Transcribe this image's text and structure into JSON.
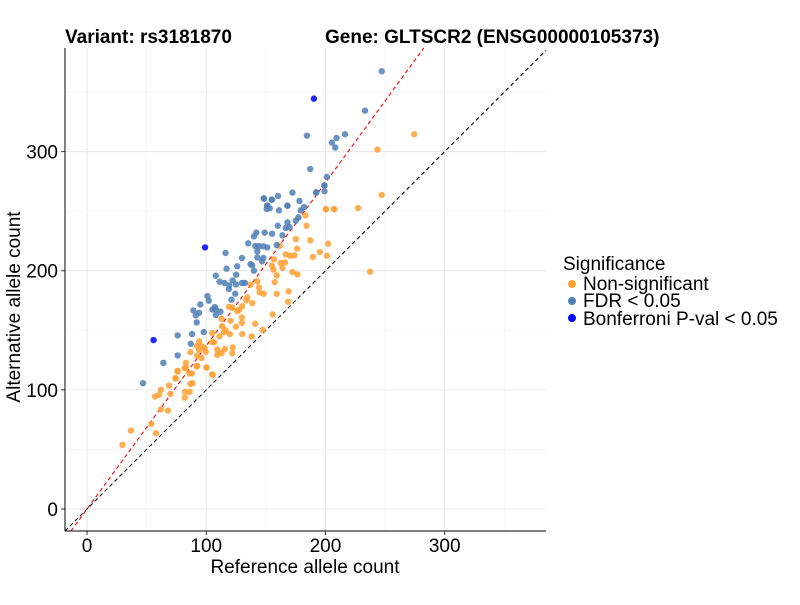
{
  "chart_data": {
    "type": "scatter",
    "title_variant": "Variant: rs3181870",
    "title_gene": "Gene: GLTSCR2 (ENSG00000105373)",
    "xlabel": "Reference allele count",
    "ylabel": "Alternative allele count",
    "xlim": [
      -18.5,
      385
    ],
    "ylim": [
      -18.5,
      387
    ],
    "xticks": [
      0,
      100,
      200,
      300
    ],
    "yticks": [
      0,
      100,
      200,
      300
    ],
    "grid": true,
    "legend": {
      "title": "Significance",
      "placement": "right",
      "entries": [
        {
          "label": "Non-significant",
          "color": "#FFA033"
        },
        {
          "label": "FDR < 0.05",
          "color": "#4F7FB5"
        },
        {
          "label": "Bonferroni P-val < 0.05",
          "color": "#0000FF"
        }
      ]
    },
    "reference_lines": [
      {
        "name": "identity",
        "slope": 1,
        "intercept": 0,
        "color": "#000000"
      },
      {
        "name": "fit",
        "slope": 1.37,
        "intercept": 0,
        "color": "#FF0000"
      }
    ],
    "series": [
      {
        "name": "Non-significant",
        "color": "#FFA033",
        "points": [
          [
            183.2,
            246.5
          ],
          [
            184.1,
            237.8
          ],
          [
            200.3,
            251.6
          ],
          [
            207.4,
            251.6
          ],
          [
            175.1,
            226.6
          ],
          [
            187.2,
            225.5
          ],
          [
            202.3,
            222.7
          ],
          [
            161.6,
            221
          ],
          [
            166.7,
            213.8
          ],
          [
            170.3,
            212.6
          ],
          [
            174,
            212.9
          ],
          [
            176.2,
            218.5
          ],
          [
            156.8,
            209.6
          ],
          [
            189.4,
            211.5
          ],
          [
            195.3,
            215.7
          ],
          [
            201.2,
            212.6
          ],
          [
            162.5,
            206.5
          ],
          [
            163.9,
            202.3
          ],
          [
            166.1,
            207
          ],
          [
            155.2,
            204.2
          ],
          [
            156.3,
            200.9
          ],
          [
            159.1,
            196.1
          ],
          [
            172.3,
            198.9
          ],
          [
            176.5,
            196.9
          ],
          [
            157.4,
            190.5
          ],
          [
            142.8,
            191.1
          ],
          [
            144.2,
            186
          ],
          [
            144.8,
            181.8
          ],
          [
            148.2,
            180.7
          ],
          [
            137.2,
            188.3
          ],
          [
            134.4,
            177.6
          ],
          [
            133.6,
            175.1
          ],
          [
            138.6,
            172.9
          ],
          [
            159.1,
            180.7
          ],
          [
            169.1,
            182.7
          ],
          [
            168.6,
            174
          ],
          [
            119,
            169.8
          ],
          [
            121.8,
            169
          ],
          [
            127.4,
            167
          ],
          [
            130.2,
            170.1
          ],
          [
            126,
            166.1
          ],
          [
            112.8,
            159.7
          ],
          [
            113.4,
            153.3
          ],
          [
            120.4,
            158
          ],
          [
            124.9,
            153
          ],
          [
            129.9,
            160.8
          ],
          [
            129.9,
            156.3
          ],
          [
            141.1,
            155.5
          ],
          [
            155.7,
            163.3
          ],
          [
            147.3,
            150.5
          ],
          [
            116.2,
            149.9
          ],
          [
            115,
            148.5
          ],
          [
            119.8,
            146.8
          ],
          [
            130.2,
            146.8
          ],
          [
            138.1,
            144.9
          ],
          [
            105,
            147.7
          ],
          [
            105,
            140.1
          ],
          [
            106.6,
            140.1
          ],
          [
            111.1,
            144.9
          ],
          [
            94,
            140.6
          ],
          [
            92.3,
            137
          ],
          [
            96.5,
            136.4
          ],
          [
            94,
            133.6
          ],
          [
            99.6,
            131.9
          ],
          [
            98.5,
            135
          ],
          [
            109.2,
            133.9
          ],
          [
            112.8,
            130.8
          ],
          [
            115.6,
            134.2
          ],
          [
            122.3,
            135.6
          ],
          [
            121.8,
            130.8
          ],
          [
            109.2,
            129.4
          ],
          [
            92.3,
            128.6
          ],
          [
            96,
            126.6
          ],
          [
            86.7,
            131.7
          ],
          [
            83,
            122.7
          ],
          [
            92.3,
            120.2
          ],
          [
            100.2,
            118.8
          ],
          [
            76,
            116
          ],
          [
            81.9,
            118.3
          ],
          [
            85.9,
            113.8
          ],
          [
            88.1,
            113.8
          ],
          [
            105,
            112.9
          ],
          [
            74.1,
            109.8
          ],
          [
            274.4,
            314.6
          ],
          [
            243.6,
            301.7
          ],
          [
            247.2,
            263.6
          ],
          [
            227.3,
            252.7
          ],
          [
            207.1,
            251.8
          ],
          [
            200.4,
            251.8
          ],
          [
            237.4,
            199.2
          ],
          [
            29.7,
            53.8
          ],
          [
            36.8,
            65.8
          ],
          [
            57.8,
            63.6
          ],
          [
            53.9,
            71.4
          ],
          [
            67.9,
            82.6
          ],
          [
            62,
            83.7
          ],
          [
            57,
            94.4
          ],
          [
            60.3,
            95.8
          ],
          [
            69.9,
            96.6
          ],
          [
            62,
            100
          ],
          [
            68.7,
            103.6
          ],
          [
            74.4,
            109.5
          ],
          [
            82,
            93.5
          ],
          [
            82.2,
            98.3
          ],
          [
            86.1,
            98.3
          ],
          [
            82.8,
            118.5
          ],
          [
            88.4,
            105.6
          ],
          [
            86.7,
            105
          ],
          [
            105.5,
            112.6
          ],
          [
            100.2,
            118.7
          ],
          [
            92,
            119.6
          ],
          [
            76,
            115.4
          ]
        ]
      },
      {
        "name": "FDR < 0.05",
        "color": "#4F7FB5",
        "points": [
          [
            148.4,
            260.5
          ],
          [
            155.2,
            259.7
          ],
          [
            160.2,
            262.8
          ],
          [
            172.3,
            265.6
          ],
          [
            178.2,
            258.6
          ],
          [
            151.2,
            254.7
          ],
          [
            153.2,
            252.4
          ],
          [
            150.7,
            251.9
          ],
          [
            161,
            250.7
          ],
          [
            168.1,
            254.7
          ],
          [
            182.1,
            253.5
          ],
          [
            179.3,
            250.7
          ],
          [
            192.2,
            265.9
          ],
          [
            199.2,
            271.7
          ],
          [
            199.2,
            266.7
          ],
          [
            177.3,
            244.8
          ],
          [
            168.1,
            240.6
          ],
          [
            175.1,
            242
          ],
          [
            160,
            237.8
          ],
          [
            169.8,
            236.7
          ],
          [
            166.7,
            235.9
          ],
          [
            142,
            232
          ],
          [
            149,
            232
          ],
          [
            155.2,
            231.1
          ],
          [
            163.9,
            229.7
          ],
          [
            140,
            228.9
          ],
          [
            135.2,
            223
          ],
          [
            141.1,
            220.8
          ],
          [
            144.2,
            220.8
          ],
          [
            147.9,
            220.5
          ],
          [
            151.2,
            219.6
          ],
          [
            159.1,
            221.6
          ],
          [
            116.2,
            214.9
          ],
          [
            142.8,
            216.3
          ],
          [
            142.8,
            211.2
          ],
          [
            147.9,
            210.7
          ],
          [
            129.9,
            210.7
          ],
          [
            137.2,
            205.6
          ],
          [
            138.6,
            204.5
          ],
          [
            146.8,
            207.9
          ],
          [
            126,
            203.7
          ],
          [
            117,
            201.7
          ],
          [
            140,
            200
          ],
          [
            125.1,
            196.7
          ],
          [
            108,
            195.8
          ],
          [
            111.1,
            190.8
          ],
          [
            115.3,
            189.7
          ],
          [
            122.1,
            191.9
          ],
          [
            124.9,
            188.5
          ],
          [
            119.3,
            187.7
          ],
          [
            119,
            184.6
          ],
          [
            129.9,
            189.7
          ],
          [
            132.4,
            189.7
          ],
          [
            124.3,
            180.7
          ],
          [
            121.2,
            175.7
          ],
          [
            101,
            178.7
          ],
          [
            102.1,
            174.8
          ],
          [
            95.1,
            171.7
          ],
          [
            89.2,
            166.7
          ],
          [
            94,
            164.7
          ],
          [
            91.2,
            162.5
          ],
          [
            107.2,
            169.5
          ],
          [
            105.2,
            167.5
          ],
          [
            108,
            167.5
          ],
          [
            111.9,
            165.6
          ],
          [
            108,
            162.8
          ],
          [
            92,
            156.6
          ],
          [
            97.9,
            148.5
          ],
          [
            88.1,
            146.8
          ],
          [
            76,
            145.7
          ],
          [
            87,
            138.7
          ],
          [
            76,
            128.9
          ],
          [
            64,
            122.7
          ],
          [
            46.9,
            105.6
          ],
          [
            247.2,
            367.5
          ],
          [
            233.2,
            334.4
          ],
          [
            184.4,
            313.4
          ],
          [
            205.4,
            307.6
          ],
          [
            209.3,
            311.5
          ],
          [
            216.4,
            314.6
          ],
          [
            208.2,
            303.4
          ],
          [
            187.2,
            285.4
          ],
          [
            201.2,
            278.7
          ],
          [
            199,
            271.4
          ],
          [
            192.2,
            265.5
          ],
          [
            148.2,
            260.8
          ],
          [
            154.9,
            259.7
          ],
          [
            168.1,
            254.6
          ],
          [
            151,
            254.6
          ]
        ]
      },
      {
        "name": "Bonferroni P-val < 0.05",
        "color": "#0000FF",
        "points": [
          [
            190.3,
            344.5
          ],
          [
            99,
            219.6
          ],
          [
            55.8,
            141.8
          ]
        ]
      }
    ]
  }
}
